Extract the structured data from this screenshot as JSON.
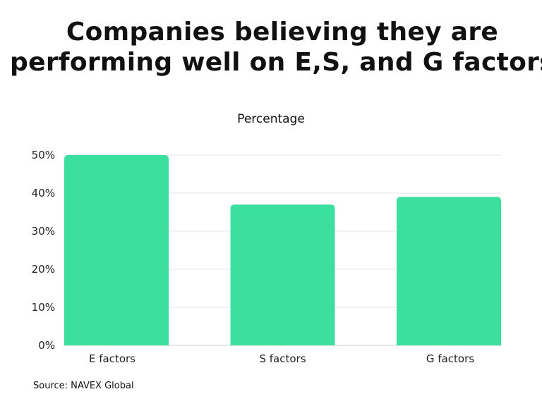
{
  "chart_data": {
    "type": "bar",
    "title": "Companies believing they are performing well on E,S, and G factors",
    "subtitle": "Percentage",
    "categories": [
      "E factors",
      "S factors",
      "G factors"
    ],
    "values": [
      50,
      37,
      39
    ],
    "ylim": [
      0,
      50
    ],
    "yticks": [
      0,
      10,
      20,
      30,
      40,
      50
    ],
    "ytick_labels": [
      "0%",
      "10%",
      "20%",
      "30%",
      "40%",
      "50%"
    ],
    "grid": true,
    "bar_color": "#3be09f",
    "source": "Source: NAVEX Global"
  }
}
